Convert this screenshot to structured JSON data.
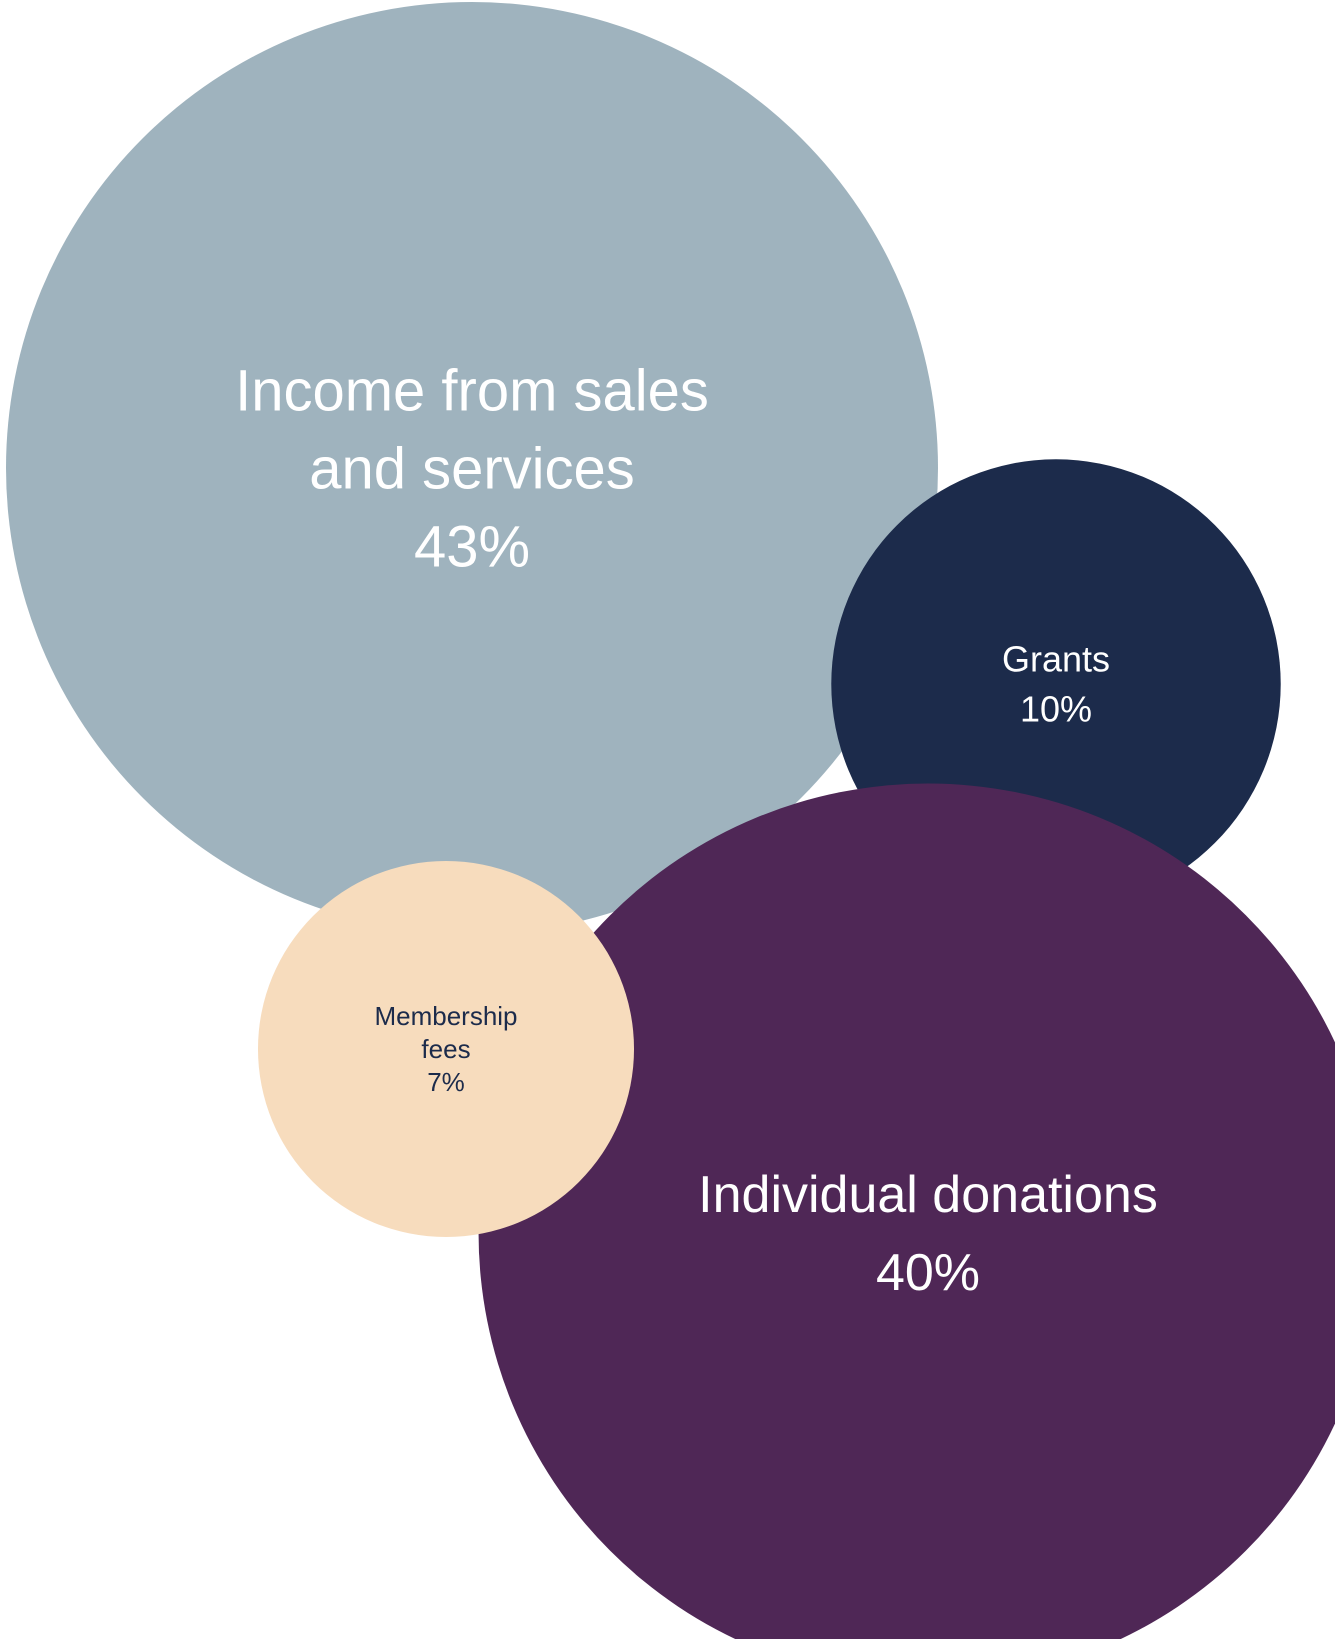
{
  "chart_data": {
    "type": "bubble",
    "series": [
      {
        "id": "sales",
        "name_lines": [
          "Income from sales",
          "and services"
        ],
        "value": 43,
        "value_label": "43%",
        "color": "#9fb3be",
        "text_color": "#ffffff"
      },
      {
        "id": "grants",
        "name_lines": [
          "Grants"
        ],
        "value": 10,
        "value_label": "10%",
        "color": "#1c2b4b",
        "text_color": "#ffffff"
      },
      {
        "id": "donations",
        "name_lines": [
          "Individual donations"
        ],
        "value": 40,
        "value_label": "40%",
        "color": "#4f2756",
        "text_color": "#ffffff"
      },
      {
        "id": "membership",
        "name_lines": [
          "Membership",
          "fees"
        ],
        "value": 7,
        "value_label": "7%",
        "color": "#f7dcbd",
        "text_color": "#1c2b4b"
      }
    ]
  }
}
